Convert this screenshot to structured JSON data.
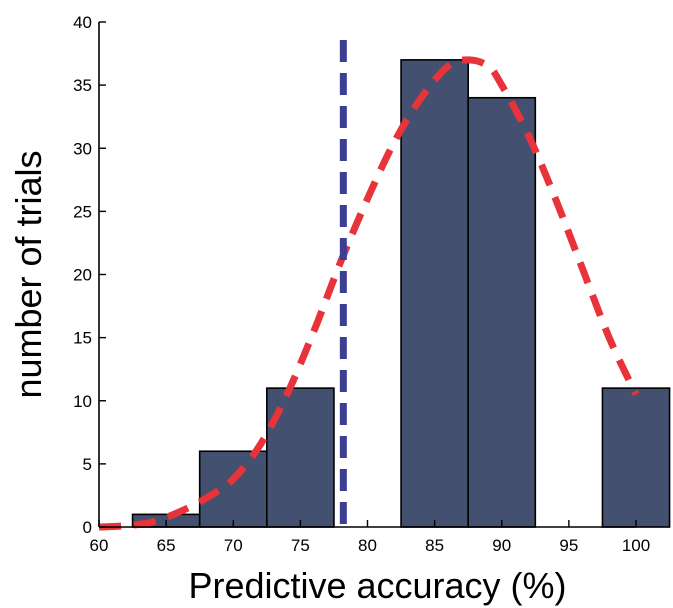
{
  "chart_data": {
    "type": "bar",
    "title": "",
    "xlabel": "Predictive accuracy (%)",
    "ylabel": "number of trials",
    "xlim": [
      60,
      100
    ],
    "ylim": [
      0,
      40
    ],
    "x_ticks": [
      60,
      65,
      70,
      75,
      80,
      85,
      90,
      95,
      100
    ],
    "y_ticks": [
      0,
      5,
      10,
      15,
      20,
      25,
      30,
      35,
      40
    ],
    "bar_width": 5,
    "bins": [
      {
        "center": 65,
        "value": 1
      },
      {
        "center": 70,
        "value": 6
      },
      {
        "center": 75,
        "value": 11
      },
      {
        "center": 85,
        "value": 37
      },
      {
        "center": 90,
        "value": 34
      },
      {
        "center": 100,
        "value": 11
      }
    ],
    "bar_color": "#44506f",
    "fit_curve": {
      "style": "dashed",
      "color": "#e8333a",
      "points": [
        [
          60,
          0
        ],
        [
          62,
          0.1
        ],
        [
          64,
          0.4
        ],
        [
          66,
          1.2
        ],
        [
          68,
          2.3
        ],
        [
          70,
          3.8
        ],
        [
          72,
          6.5
        ],
        [
          74,
          10.5
        ],
        [
          76,
          15.5
        ],
        [
          78,
          21
        ],
        [
          80,
          26
        ],
        [
          82,
          30.5
        ],
        [
          84,
          34
        ],
        [
          86,
          36.5
        ],
        [
          87.5,
          37
        ],
        [
          89,
          36.5
        ],
        [
          90,
          35
        ],
        [
          92,
          31
        ],
        [
          94,
          26
        ],
        [
          96,
          20.5
        ],
        [
          98,
          15
        ],
        [
          100,
          10.5
        ]
      ]
    },
    "threshold_line": {
      "x": 78.2,
      "style": "dashed",
      "color": "#3c3f93"
    },
    "grid": false,
    "legend": "none"
  }
}
